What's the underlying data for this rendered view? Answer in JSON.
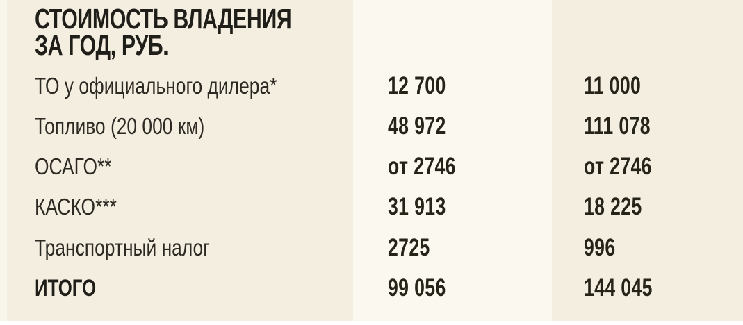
{
  "title": {
    "line1": "СТОИМОСТЬ ВЛАДЕНИЯ",
    "line2": "ЗА ГОД, РУБ."
  },
  "colors": {
    "page_background": "#f4eee1",
    "column1_band": "#fbf8ef",
    "left_margin": "#f8f5ea",
    "bottom_margin": "#ffffff",
    "text": "#262319"
  },
  "chart_data": {
    "type": "table",
    "title": "СТОИМОСТЬ ВЛАДЕНИЯ ЗА ГОД, РУБ.",
    "rows": [
      {
        "label": "ТО у официального дилера*",
        "values": [
          "12 700",
          "11 000"
        ]
      },
      {
        "label": "Топливо (20 000 км)",
        "values": [
          "48 972",
          "111 078"
        ]
      },
      {
        "label": "ОСАГО**",
        "values": [
          "от 2746",
          "от 2746"
        ]
      },
      {
        "label": "КАСКО***",
        "values": [
          "31 913",
          "18 225"
        ]
      },
      {
        "label": "Транспортный налог",
        "values": [
          "2725",
          "996"
        ]
      },
      {
        "label": "ИТОГО",
        "values": [
          "99 056",
          "144 045"
        ]
      }
    ]
  }
}
